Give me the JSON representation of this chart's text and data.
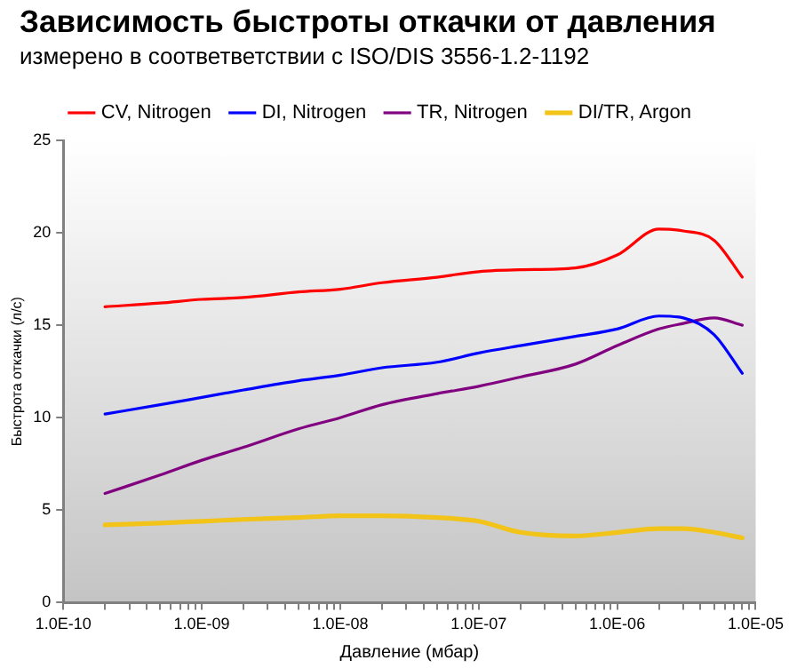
{
  "chart_data": {
    "type": "line",
    "title": "Зависимость быстроты откачки от давления",
    "subtitle": "измерено в соответветствии с  ISO/DIS 3556-1.2-1192",
    "xlabel": "Давление (мбар)",
    "ylabel": "Быстрота откачки (л/с)",
    "log": "x",
    "grid": false,
    "legend": "top",
    "marker": "none",
    "line_style": "solid",
    "x": [
      2e-10,
      5e-10,
      1e-09,
      2e-09,
      5e-09,
      1e-08,
      2e-08,
      5e-08,
      1e-07,
      2e-07,
      5e-07,
      1e-06,
      2e-06,
      3e-06,
      5e-06,
      8e-06
    ],
    "xlim": [
      1e-10,
      1e-05
    ],
    "xticks": [
      {
        "value": 1e-10,
        "label": "1.0E-10"
      },
      {
        "value": 2e-10,
        "label": null
      },
      {
        "value": 3e-10,
        "label": null
      },
      {
        "value": 4e-10,
        "label": null
      },
      {
        "value": 5e-10,
        "label": null
      },
      {
        "value": 6e-10,
        "label": null
      },
      {
        "value": 7e-10,
        "label": null
      },
      {
        "value": 8e-10,
        "label": null
      },
      {
        "value": 9e-10,
        "label": null
      },
      {
        "value": 1e-09,
        "label": "1.0E-09"
      },
      {
        "value": 2e-09,
        "label": null
      },
      {
        "value": 3e-09,
        "label": null
      },
      {
        "value": 4e-09,
        "label": null
      },
      {
        "value": 5e-09,
        "label": null
      },
      {
        "value": 6e-09,
        "label": null
      },
      {
        "value": 7e-09,
        "label": null
      },
      {
        "value": 8e-09,
        "label": null
      },
      {
        "value": 9e-09,
        "label": null
      },
      {
        "value": 1e-08,
        "label": "1.0E-08"
      },
      {
        "value": 2e-08,
        "label": null
      },
      {
        "value": 3e-08,
        "label": null
      },
      {
        "value": 4e-08,
        "label": null
      },
      {
        "value": 5e-08,
        "label": null
      },
      {
        "value": 6e-08,
        "label": null
      },
      {
        "value": 7e-08,
        "label": null
      },
      {
        "value": 8e-08,
        "label": null
      },
      {
        "value": 9e-08,
        "label": null
      },
      {
        "value": 1e-07,
        "label": "1.0E-07"
      },
      {
        "value": 2e-07,
        "label": null
      },
      {
        "value": 3e-07,
        "label": null
      },
      {
        "value": 4e-07,
        "label": null
      },
      {
        "value": 5e-07,
        "label": null
      },
      {
        "value": 6e-07,
        "label": null
      },
      {
        "value": 7e-07,
        "label": null
      },
      {
        "value": 8e-07,
        "label": null
      },
      {
        "value": 9e-07,
        "label": null
      },
      {
        "value": 1e-06,
        "label": "1.0E-06"
      },
      {
        "value": 2e-06,
        "label": null
      },
      {
        "value": 3e-06,
        "label": null
      },
      {
        "value": 4e-06,
        "label": null
      },
      {
        "value": 5e-06,
        "label": null
      },
      {
        "value": 6e-06,
        "label": null
      },
      {
        "value": 7e-06,
        "label": null
      },
      {
        "value": 8e-06,
        "label": null
      },
      {
        "value": 9e-06,
        "label": null
      },
      {
        "value": 1e-05,
        "label": "1.0E-05"
      }
    ],
    "ylim": [
      0,
      25
    ],
    "yticks": [
      0,
      5,
      10,
      15,
      20,
      25
    ],
    "series": [
      {
        "name": "CV, Nitrogen",
        "color": "#ff0000",
        "values": [
          16.0,
          16.2,
          16.4,
          16.5,
          16.8,
          16.95,
          17.3,
          17.6,
          17.9,
          18.0,
          18.1,
          18.8,
          20.2,
          20.1,
          19.6,
          17.6
        ]
      },
      {
        "name": "DI, Nitrogen",
        "color": "#0000ff",
        "values": [
          10.2,
          10.7,
          11.1,
          11.5,
          12.0,
          12.3,
          12.7,
          13.0,
          13.5,
          13.9,
          14.4,
          14.8,
          15.5,
          15.4,
          14.5,
          12.4
        ]
      },
      {
        "name": "TR, Nitrogen",
        "color": "#800080",
        "values": [
          5.9,
          6.9,
          7.7,
          8.4,
          9.4,
          10.0,
          10.7,
          11.3,
          11.7,
          12.2,
          12.9,
          13.9,
          14.8,
          15.1,
          15.4,
          15.0
        ]
      },
      {
        "name": "DI/TR, Argon",
        "color": "#f2c318",
        "values": [
          4.2,
          4.3,
          4.4,
          4.5,
          4.6,
          4.7,
          4.7,
          4.6,
          4.4,
          3.8,
          3.6,
          3.8,
          4.0,
          4.0,
          3.8,
          3.5
        ]
      }
    ]
  }
}
